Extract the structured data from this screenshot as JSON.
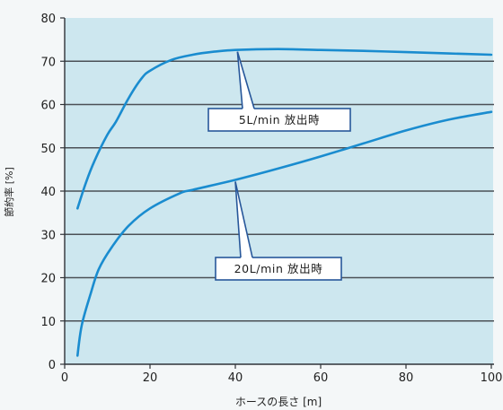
{
  "chart_data": {
    "type": "line",
    "title": "",
    "xlabel": "ホースの長さ [m]",
    "ylabel": "節約率 [%]",
    "xlim": [
      0,
      100
    ],
    "ylim": [
      0,
      80
    ],
    "xticks": [
      0,
      20,
      40,
      60,
      80,
      100
    ],
    "yticks": [
      0,
      10,
      20,
      30,
      40,
      50,
      60,
      70,
      80
    ],
    "grid": true,
    "series": [
      {
        "name": "5L/min 放出時",
        "color": "#1a8ccf",
        "x": [
          3,
          5,
          7,
          10,
          12,
          15,
          18,
          20,
          25,
          30,
          35,
          40,
          50,
          60,
          70,
          80,
          90,
          100
        ],
        "y": [
          36,
          42,
          47,
          53,
          56,
          61.5,
          66,
          67.8,
          70.3,
          71.5,
          72.2,
          72.6,
          72.8,
          72.6,
          72.4,
          72.1,
          71.8,
          71.5
        ]
      },
      {
        "name": "20L/min 放出時",
        "color": "#1a8ccf",
        "x": [
          3,
          4,
          6,
          8,
          11,
          15,
          20,
          27,
          30,
          40,
          50,
          60,
          70,
          80,
          90,
          100
        ],
        "y": [
          2,
          9,
          16,
          22,
          27,
          32,
          36,
          39.5,
          40.3,
          42.6,
          45.2,
          48,
          51,
          54,
          56.5,
          58.3
        ]
      }
    ]
  },
  "colors": {
    "plot_background": "#cde7ef",
    "grid": "#4b5056",
    "axis": "#2f3338",
    "callout_border": "#27579a",
    "callout_fill": "#ffffff"
  }
}
